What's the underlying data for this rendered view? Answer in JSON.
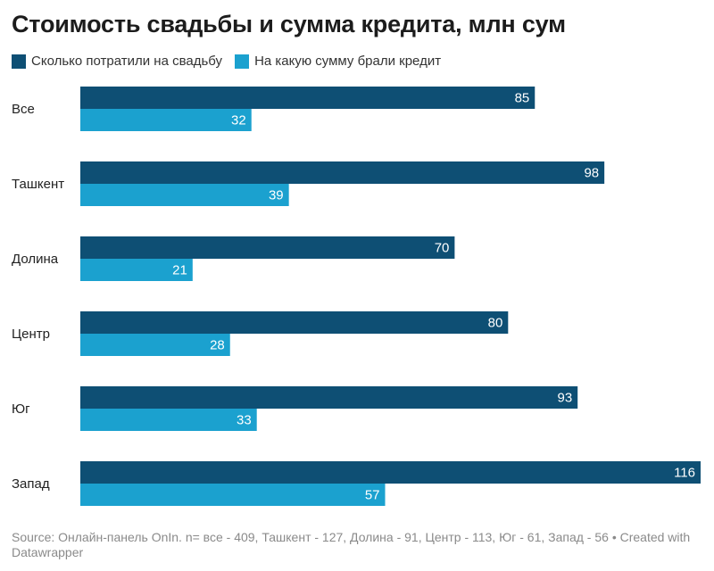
{
  "colors": {
    "spent": "#0e4f74",
    "credit": "#1ba1cf",
    "label_on_bar": "#ffffff"
  },
  "chart_data": {
    "type": "bar",
    "orientation": "horizontal",
    "title": "Стоимость свадьбы и сумма кредита, млн сум",
    "categories": [
      "Все",
      "Ташкент",
      "Долина",
      "Центр",
      "Юг",
      "Запад"
    ],
    "series": [
      {
        "name": "Сколько потратили на свадьбу",
        "values": [
          85,
          98,
          70,
          80,
          93,
          116
        ]
      },
      {
        "name": "На какую сумму брали кредит",
        "values": [
          32,
          39,
          21,
          28,
          33,
          57
        ]
      }
    ],
    "xlim": [
      0,
      116
    ],
    "grid": false,
    "legend": "top-left"
  },
  "footer": {
    "source": "Source: Онлайн-панель OnIn. n= все - 409, Ташкент - 127, Долина - 91, Центр - 113, Юг - 61, Запад - 56 • Created with Datawrapper"
  }
}
